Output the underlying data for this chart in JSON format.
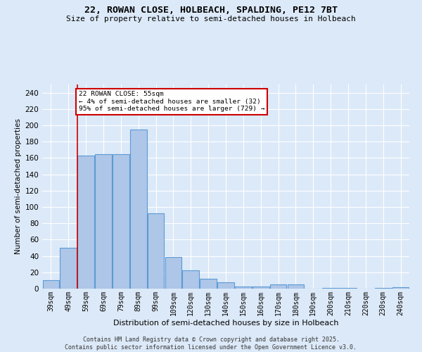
{
  "title_line1": "22, ROWAN CLOSE, HOLBEACH, SPALDING, PE12 7BT",
  "title_line2": "Size of property relative to semi-detached houses in Holbeach",
  "xlabel": "Distribution of semi-detached houses by size in Holbeach",
  "ylabel": "Number of semi-detached properties",
  "categories": [
    "39sqm",
    "49sqm",
    "59sqm",
    "69sqm",
    "79sqm",
    "89sqm",
    "99sqm",
    "109sqm",
    "120sqm",
    "130sqm",
    "140sqm",
    "150sqm",
    "160sqm",
    "170sqm",
    "180sqm",
    "190sqm",
    "200sqm",
    "210sqm",
    "220sqm",
    "230sqm",
    "240sqm"
  ],
  "values": [
    10,
    50,
    163,
    165,
    165,
    195,
    92,
    39,
    22,
    12,
    8,
    3,
    3,
    5,
    5,
    0,
    1,
    1,
    0,
    1,
    2
  ],
  "bar_color": "#aec6e8",
  "bar_edge_color": "#5b9bd5",
  "bg_color": "#dce9f8",
  "grid_color": "#ffffff",
  "vline_color": "#cc0000",
  "annotation_title": "22 ROWAN CLOSE: 55sqm",
  "annotation_line1": "← 4% of semi-detached houses are smaller (32)",
  "annotation_line2": "95% of semi-detached houses are larger (729) →",
  "annotation_box_color": "#ffffff",
  "annotation_box_edge": "#cc0000",
  "footer_line1": "Contains HM Land Registry data © Crown copyright and database right 2025.",
  "footer_line2": "Contains public sector information licensed under the Open Government Licence v3.0.",
  "ylim": [
    0,
    250
  ],
  "yticks": [
    0,
    20,
    40,
    60,
    80,
    100,
    120,
    140,
    160,
    180,
    200,
    220,
    240
  ]
}
